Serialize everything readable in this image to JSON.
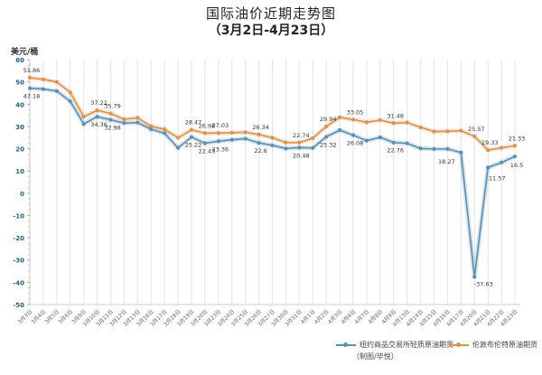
{
  "header": {
    "title": "国际油价近期走势图",
    "subtitle": "（3月2日-4月23日）",
    "unit": "美元/桶"
  },
  "legend": {
    "wti_label": "纽约商品交易所轻质原油期货",
    "brent_label": "伦敦布伦特原油期货",
    "credit": "（制图/毕悦）"
  },
  "colors": {
    "wti": "#5b8fae",
    "brent": "#d9934f"
  },
  "chart_data": {
    "type": "line",
    "title": "国际油价近期走势图（3月2日-4月23日）",
    "xlabel": "",
    "ylabel": "美元/桶",
    "ylim": [
      -50,
      60
    ],
    "yticks": [
      60,
      50,
      40,
      30,
      20,
      10,
      0,
      -10,
      -20,
      -30,
      -40,
      -50
    ],
    "grid": "vertical",
    "legend_position": "bottom-right",
    "categories": [
      "3月3日",
      "3月4日",
      "3月5日",
      "3月6日",
      "3月9日",
      "3月10日",
      "3月11日",
      "3月12日",
      "3月13日",
      "3月16日",
      "3月17日",
      "3月18日",
      "3月19日",
      "3月20日",
      "3月23日",
      "3月24日",
      "3月25日",
      "3月26日",
      "3月27日",
      "3月30日",
      "3月31日",
      "4月1日",
      "4月2日",
      "4月3日",
      "4月6日",
      "4月7日",
      "4月8日",
      "4月9日",
      "4月13日",
      "4月14日",
      "4月15日",
      "4月16日",
      "4月17日",
      "4月20日",
      "4月21日",
      "4月22日",
      "4月23日"
    ],
    "series": [
      {
        "name": "纽约商品交易所轻质原油期货",
        "values": [
          47.18,
          46.78,
          45.9,
          41.28,
          31.13,
          34.36,
          32.98,
          31.5,
          31.73,
          28.7,
          26.95,
          20.37,
          25.22,
          22.43,
          23.36,
          24.01,
          24.49,
          22.6,
          21.51,
          20.09,
          20.48,
          20.31,
          25.32,
          28.34,
          26.08,
          23.63,
          25.09,
          22.76,
          22.41,
          20.11,
          19.87,
          19.87,
          18.27,
          -37.63,
          11.57,
          13.78,
          16.5
        ]
      },
      {
        "name": "伦敦布伦特原油期货",
        "values": [
          51.86,
          51.13,
          49.99,
          45.27,
          34.36,
          37.22,
          35.79,
          33.22,
          33.85,
          30.05,
          28.73,
          24.88,
          28.47,
          26.98,
          27.03,
          27.15,
          27.39,
          26.34,
          24.93,
          22.76,
          22.74,
          24.74,
          29.94,
          34.11,
          33.05,
          31.87,
          32.84,
          31.48,
          31.74,
          29.6,
          27.69,
          27.82,
          28.08,
          25.57,
          19.33,
          20.37,
          21.33
        ]
      }
    ],
    "data_labels": {
      "wti": [
        {
          "index": 0,
          "text": "47.18"
        },
        {
          "index": 5,
          "text": "34.36"
        },
        {
          "index": 6,
          "text": "32.98"
        },
        {
          "index": 12,
          "text": "25.22"
        },
        {
          "index": 13,
          "text": "22.43"
        },
        {
          "index": 14,
          "text": "23.36"
        },
        {
          "index": 17,
          "text": "22.6"
        },
        {
          "index": 20,
          "text": "20.48"
        },
        {
          "index": 22,
          "text": "25.32"
        },
        {
          "index": 24,
          "text": "26.08"
        },
        {
          "index": 27,
          "text": "22.76"
        },
        {
          "index": 32,
          "text": "18.27"
        },
        {
          "index": 33,
          "text": "-37.63"
        },
        {
          "index": 34,
          "text": "11.57"
        },
        {
          "index": 36,
          "text": "16.5"
        }
      ],
      "brent": [
        {
          "index": 0,
          "text": "51.86"
        },
        {
          "index": 5,
          "text": "37.22"
        },
        {
          "index": 6,
          "text": "35.79"
        },
        {
          "index": 12,
          "text": "28.47"
        },
        {
          "index": 13,
          "text": "26.98"
        },
        {
          "index": 14,
          "text": "27.03"
        },
        {
          "index": 17,
          "text": "26.34"
        },
        {
          "index": 20,
          "text": "22.74"
        },
        {
          "index": 22,
          "text": "29.94"
        },
        {
          "index": 24,
          "text": "33.05"
        },
        {
          "index": 27,
          "text": "31.48"
        },
        {
          "index": 33,
          "text": "25.57"
        },
        {
          "index": 34,
          "text": "19.33"
        },
        {
          "index": 36,
          "text": "21.33"
        }
      ]
    }
  }
}
